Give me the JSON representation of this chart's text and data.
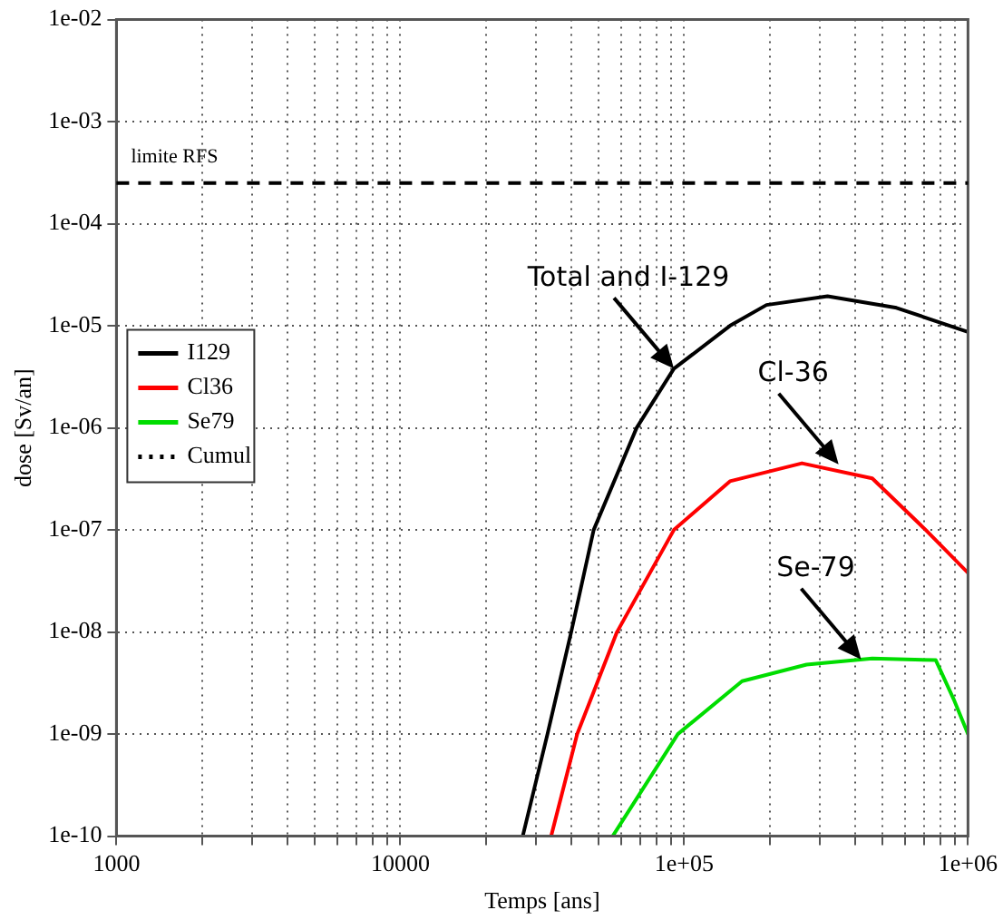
{
  "chart_data": {
    "type": "line",
    "xlabel": "Temps [ans]",
    "ylabel": "dose [Sv/an]",
    "log": "xy",
    "grid": true,
    "legend": "left",
    "marker": "none",
    "xlim": [
      1000,
      1000000
    ],
    "xticks": [
      1000,
      {
        "value": 2000,
        "label": null
      },
      {
        "value": 3000,
        "label": null
      },
      {
        "value": 4000,
        "label": null
      },
      {
        "value": 5000,
        "label": null
      },
      {
        "value": 6000,
        "label": null
      },
      {
        "value": 7000,
        "label": null
      },
      {
        "value": 8000,
        "label": null
      },
      {
        "value": 9000,
        "label": null
      },
      10000,
      {
        "value": 20000,
        "label": null
      },
      {
        "value": 30000,
        "label": null
      },
      {
        "value": 40000,
        "label": null
      },
      {
        "value": 50000,
        "label": null
      },
      {
        "value": 60000,
        "label": null
      },
      {
        "value": 70000,
        "label": null
      },
      {
        "value": 80000,
        "label": null
      },
      {
        "value": 90000,
        "label": null
      },
      {
        "value": 100000,
        "label": "1e+05"
      },
      {
        "value": 200000,
        "label": null
      },
      {
        "value": 300000,
        "label": null
      },
      {
        "value": 400000,
        "label": null
      },
      {
        "value": 500000,
        "label": null
      },
      {
        "value": 600000,
        "label": null
      },
      {
        "value": 700000,
        "label": null
      },
      {
        "value": 800000,
        "label": null
      },
      {
        "value": 900000,
        "label": null
      },
      {
        "value": 1000000,
        "label": "1e+06"
      }
    ],
    "ylim": [
      1e-10,
      0.01
    ],
    "yticks": [
      {
        "value": 1e-10,
        "label": "1e-10"
      },
      {
        "value": 1e-09,
        "label": "1e-09"
      },
      {
        "value": 1e-08,
        "label": "1e-08"
      },
      {
        "value": 1e-07,
        "label": "1e-07"
      },
      {
        "value": 1e-06,
        "label": "1e-06"
      },
      {
        "value": 1e-05,
        "label": "1e-05"
      },
      {
        "value": 0.0001,
        "label": "1e-04"
      },
      {
        "value": 0.001,
        "label": "1e-03"
      },
      {
        "value": 0.01,
        "label": "1e-02"
      }
    ],
    "series": [
      {
        "name": "I129",
        "color": "#000000",
        "x": [
          27000,
          33000,
          40000,
          48000,
          68000,
          92000,
          145000,
          195000,
          320000,
          560000,
          1000000
        ],
        "values": [
          1e-10,
          1e-09,
          1e-08,
          1e-07,
          1e-06,
          3.8e-06,
          1e-05,
          1.6e-05,
          1.95e-05,
          1.5e-05,
          8.7e-06
        ]
      },
      {
        "name": "Cl36",
        "color": "#ff0000",
        "x": [
          34000,
          42000,
          58000,
          92000,
          145000,
          260000,
          460000,
          710000,
          1000000
        ],
        "values": [
          1e-10,
          1e-09,
          1e-08,
          1e-07,
          3e-07,
          4.5e-07,
          3.2e-07,
          1e-07,
          3.8e-08
        ]
      },
      {
        "name": "Se79",
        "color": "#00dd00",
        "x": [
          56000,
          95000,
          160000,
          270000,
          460000,
          770000,
          890000,
          1000000
        ],
        "values": [
          1e-10,
          1e-09,
          3.3e-09,
          4.8e-09,
          5.5e-09,
          5.3e-09,
          2.2e-09,
          1e-09
        ]
      },
      {
        "name": "Cumul",
        "color": "#000000",
        "line_style": "dotted"
      }
    ],
    "ref_lines": [
      {
        "axis": "y",
        "value": 0.00025,
        "label": "limite RFS",
        "color": "#000000",
        "line_style": "dashed"
      }
    ],
    "annotations": [
      {
        "text": "Total and I-129",
        "x": 92000,
        "y": 3.8e-06
      },
      {
        "text": "Cl-36",
        "x": 350000,
        "y": 4.4e-07
      },
      {
        "text": "Se-79",
        "x": 420000,
        "y": 5.4e-09
      }
    ]
  }
}
